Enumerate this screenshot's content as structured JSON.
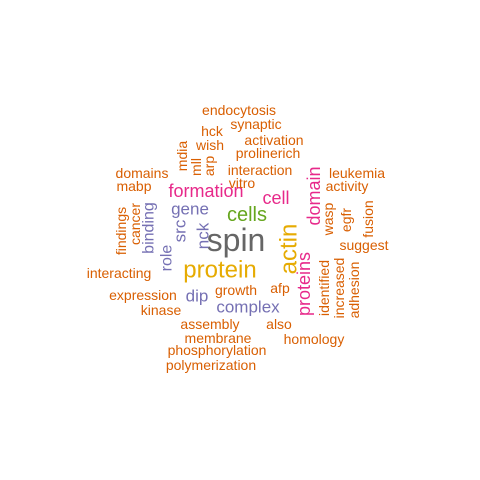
{
  "palette": {
    "gray": "#666666",
    "gold": "#E6AB02",
    "green": "#66A61E",
    "magenta": "#E7298A",
    "purple": "#7570B3",
    "orange": "#D95F02"
  },
  "words": [
    {
      "text": "spin",
      "color": "gray"
    },
    {
      "text": "protein",
      "color": "gold"
    },
    {
      "text": "actin",
      "color": "gold"
    },
    {
      "text": "cells",
      "color": "green"
    },
    {
      "text": "formation",
      "color": "magenta"
    },
    {
      "text": "cell",
      "color": "magenta"
    },
    {
      "text": "proteins",
      "color": "magenta"
    },
    {
      "text": "domain",
      "color": "magenta"
    },
    {
      "text": "gene",
      "color": "purple"
    },
    {
      "text": "complex",
      "color": "purple"
    },
    {
      "text": "src",
      "color": "purple"
    },
    {
      "text": "nck",
      "color": "purple"
    },
    {
      "text": "dip",
      "color": "purple"
    },
    {
      "text": "role",
      "color": "purple"
    },
    {
      "text": "binding",
      "color": "purple"
    },
    {
      "text": "endocytosis",
      "color": "orange"
    },
    {
      "text": "synaptic",
      "color": "orange"
    },
    {
      "text": "hck",
      "color": "orange"
    },
    {
      "text": "activation",
      "color": "orange"
    },
    {
      "text": "wish",
      "color": "orange"
    },
    {
      "text": "prolinerich",
      "color": "orange"
    },
    {
      "text": "mdia",
      "color": "orange"
    },
    {
      "text": "mll",
      "color": "orange"
    },
    {
      "text": "arp",
      "color": "orange"
    },
    {
      "text": "interaction",
      "color": "orange"
    },
    {
      "text": "domains",
      "color": "orange"
    },
    {
      "text": "leukemia",
      "color": "orange"
    },
    {
      "text": "mabp",
      "color": "orange"
    },
    {
      "text": "vitro",
      "color": "orange"
    },
    {
      "text": "activity",
      "color": "orange"
    },
    {
      "text": "findings",
      "color": "orange"
    },
    {
      "text": "cancer",
      "color": "orange"
    },
    {
      "text": "wasp",
      "color": "orange"
    },
    {
      "text": "egfr",
      "color": "orange"
    },
    {
      "text": "fusion",
      "color": "orange"
    },
    {
      "text": "suggest",
      "color": "orange"
    },
    {
      "text": "identified",
      "color": "orange"
    },
    {
      "text": "increased",
      "color": "orange"
    },
    {
      "text": "adhesion",
      "color": "orange"
    },
    {
      "text": "interacting",
      "color": "orange"
    },
    {
      "text": "growth",
      "color": "orange"
    },
    {
      "text": "afp",
      "color": "orange"
    },
    {
      "text": "expression",
      "color": "orange"
    },
    {
      "text": "kinase",
      "color": "orange"
    },
    {
      "text": "assembly",
      "color": "orange"
    },
    {
      "text": "also",
      "color": "orange"
    },
    {
      "text": "membrane",
      "color": "orange"
    },
    {
      "text": "homology",
      "color": "orange"
    },
    {
      "text": "phosphorylation",
      "color": "orange"
    },
    {
      "text": "polymerization",
      "color": "orange"
    }
  ]
}
